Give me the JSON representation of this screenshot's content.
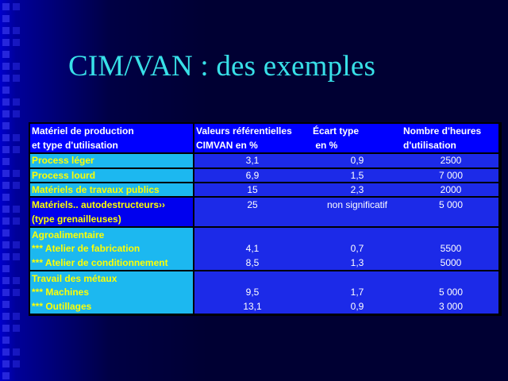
{
  "slide": {
    "title": "CIM/VAN : des exemples"
  },
  "table": {
    "headers": [
      [
        "Matériel de production",
        "et type d'utilisation"
      ],
      [
        "Valeurs référentielles",
        "CIMVAN en %"
      ],
      [
        "Écart type",
        " en %"
      ],
      [
        "Nombre d'heures",
        "d'utilisation"
      ]
    ],
    "rows": [
      {
        "labels": [
          "Process léger"
        ],
        "values": [
          [
            "3,1"
          ],
          [
            "0,9"
          ],
          [
            "2500"
          ]
        ]
      },
      {
        "labels": [
          "Process lourd"
        ],
        "values": [
          [
            "6,9"
          ],
          [
            "1,5"
          ],
          [
            "7 000"
          ]
        ]
      },
      {
        "labels": [
          "Matériels de travaux publics"
        ],
        "values": [
          [
            "15"
          ],
          [
            "2,3"
          ],
          [
            "2000"
          ]
        ]
      },
      {
        "labels": [
          "Matériels.. autodestructeurs››",
          "(type grenailleuses)"
        ],
        "values": [
          [
            "25",
            ""
          ],
          [
            "non significatif",
            ""
          ],
          [
            "5 000",
            ""
          ]
        ]
      },
      {
        "labels": [
          "Agroalimentaire",
          "*** Atelier de fabrication",
          "*** Atelier de conditionnement"
        ],
        "values": [
          [
            "",
            "4,1",
            "8,5"
          ],
          [
            "",
            "0,7",
            "1,3"
          ],
          [
            "",
            "5500",
            "5000"
          ]
        ]
      },
      {
        "labels": [
          "Travail des métaux",
          "*** Machines",
          "*** Outillages"
        ],
        "values": [
          [
            "",
            "9,5",
            "13,1"
          ],
          [
            "",
            "1,7",
            "0,9"
          ],
          [
            "",
            "5 000",
            "3 000"
          ]
        ]
      }
    ]
  }
}
